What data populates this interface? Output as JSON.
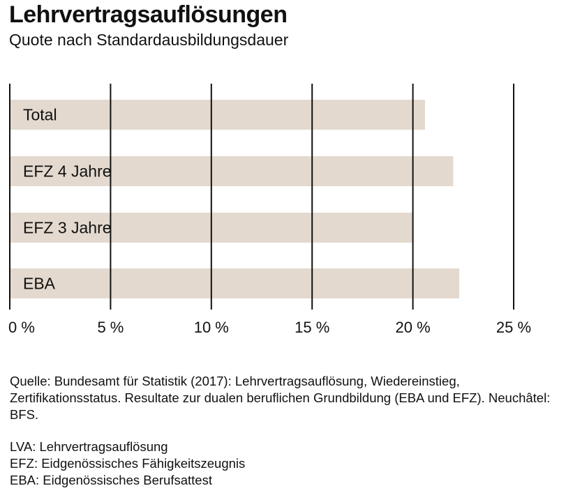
{
  "chart_data": {
    "type": "bar",
    "orientation": "horizontal",
    "title": "Lehrvertragsauflösungen",
    "subtitle": "Quote nach Standardausbildungsdauer",
    "categories": [
      "Total",
      "EFZ 4 Jahre",
      "EFZ 3 Jahre",
      "EBA"
    ],
    "values": [
      20.6,
      22.0,
      20.0,
      22.3
    ],
    "unit": "%",
    "xlim": [
      0,
      25
    ],
    "xticks": [
      0,
      5,
      10,
      15,
      20,
      25
    ],
    "xtick_labels": [
      "0 %",
      "5 %",
      "10 %",
      "15 %",
      "20 %",
      "25 %"
    ],
    "grid": true,
    "bar_color": "#e3d9ce"
  },
  "notes": {
    "source": "Quelle: Bundesamt für Statistik (2017): Lehrvertragsauflösung, Wiedereinstieg, Zertifikationsstatus. Resultate zur dualen beruflichen Grundbildung (EBA und EFZ). Neuchâtel: BFS.",
    "abbreviations": [
      "LVA: Lehrvertragsauflösung",
      "EFZ: Eidgenössisches Fähigkeitszeugnis",
      "EBA: Eidgenössisches Berufsattest"
    ]
  }
}
